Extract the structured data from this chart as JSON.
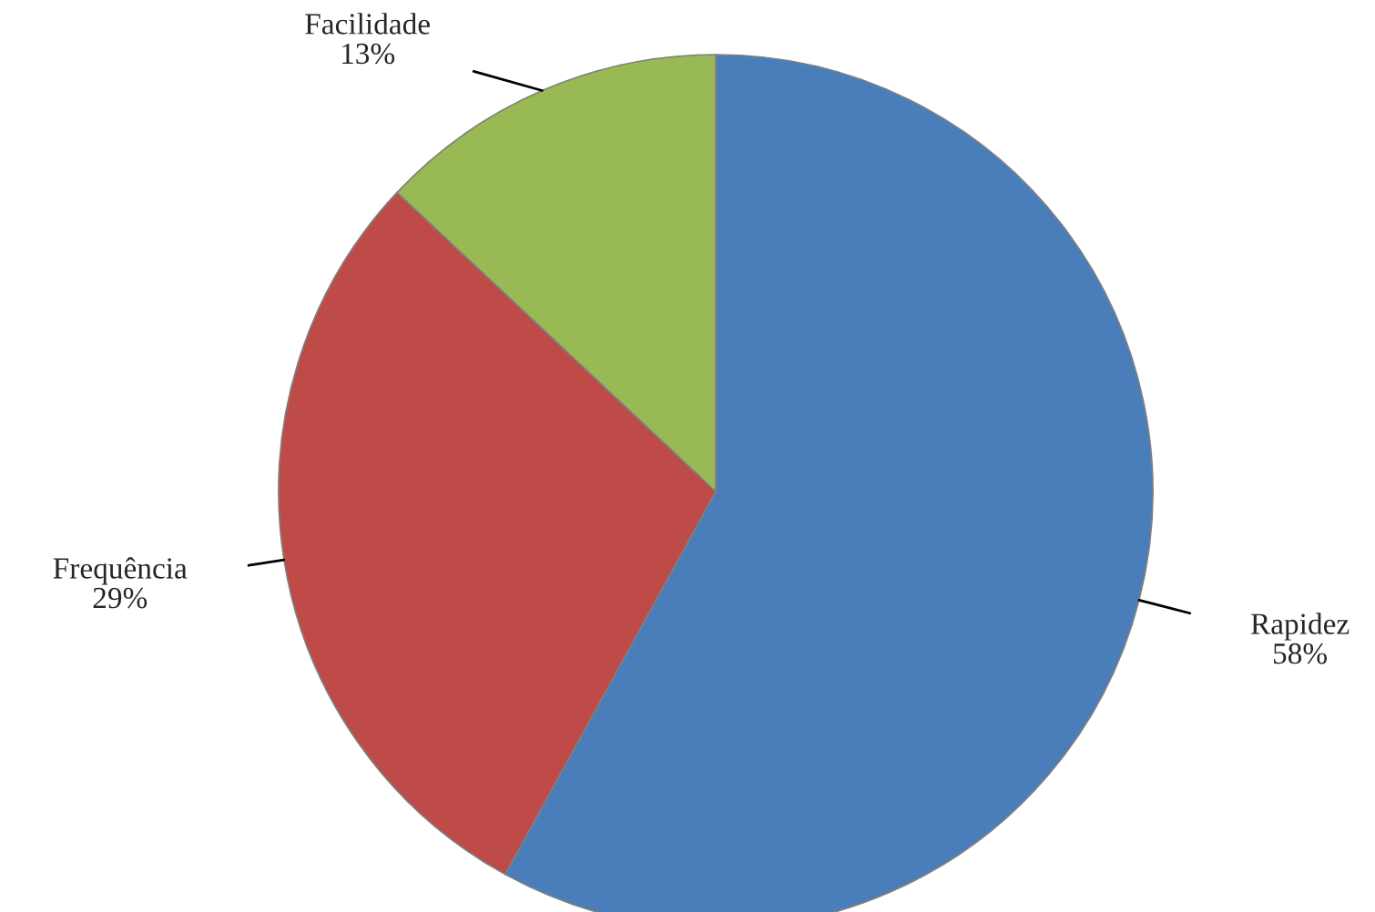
{
  "chart_data": {
    "type": "pie",
    "categories": [
      "Rapidez",
      "Frequência",
      "Facilidade"
    ],
    "values": [
      58,
      29,
      13
    ],
    "value_labels": [
      "58%",
      "29%",
      "13%"
    ],
    "colors": [
      "#4a7ebb",
      "#be4b48",
      "#98b954"
    ],
    "legend": false
  }
}
